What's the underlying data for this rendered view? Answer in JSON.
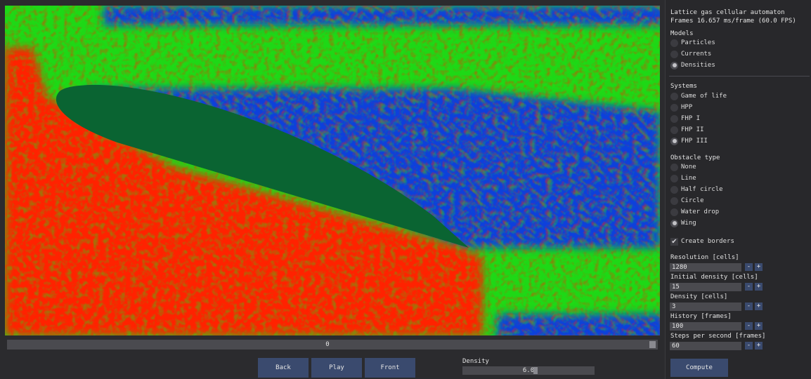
{
  "header": {
    "title": "Lattice gas cellular automaton",
    "fps_line": "Frames 16.657 ms/frame (60.0 FPS)"
  },
  "models": {
    "title": "Models",
    "options": [
      "Particles",
      "Currents",
      "Densities"
    ],
    "selected": "Densities"
  },
  "systems": {
    "title": "Systems",
    "options": [
      "Game of life",
      "HPP",
      "FHP I",
      "FHP II",
      "FHP III"
    ],
    "selected": "FHP III"
  },
  "obstacle": {
    "title": "Obstacle type",
    "options": [
      "None",
      "Line",
      "Half circle",
      "Circle",
      "Water drop",
      "Wing"
    ],
    "selected": "Wing"
  },
  "create_borders": {
    "label": "Create borders",
    "checked": true
  },
  "params": [
    {
      "label": "Resolution [cells]",
      "value": "1280"
    },
    {
      "label": "Initial density [cells]",
      "value": "15"
    },
    {
      "label": "Density [cells]",
      "value": "3"
    },
    {
      "label": "History [frames]",
      "value": "100"
    },
    {
      "label": "Steps per second [frames]",
      "value": "60"
    }
  ],
  "stepper": {
    "minus": "-",
    "plus": "+"
  },
  "compute_label": "Compute",
  "timeline": {
    "value": "0",
    "position": 1.0
  },
  "controls": {
    "back": "Back",
    "play": "Play",
    "front": "Front"
  },
  "density_slider": {
    "label": "Density",
    "value": "6.0",
    "fraction": 0.55
  },
  "colors": {
    "high": "#ff1e00",
    "mid": "#1edc14",
    "low": "#0a3cdc",
    "obstacle": "#0a6432"
  }
}
